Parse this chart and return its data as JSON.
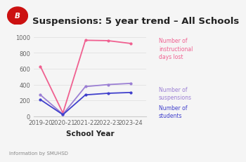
{
  "title": "Suspensions: 5 year trend – All Schools",
  "xlabel": "School Year",
  "footer": "Information by SMUHSD",
  "x_labels": [
    "2019-20",
    "2020-21",
    "2021-22",
    "2022-23",
    "2023-24"
  ],
  "days_lost": [
    630,
    40,
    960,
    955,
    920
  ],
  "suspensions": [
    270,
    25,
    375,
    400,
    415
  ],
  "students": [
    210,
    20,
    270,
    290,
    300
  ],
  "color_days": "#f06090",
  "color_suspensions": "#9b7fd4",
  "color_students": "#4040cc",
  "ylim": [
    0,
    1000
  ],
  "yticks": [
    0,
    200,
    400,
    600,
    800,
    1000
  ],
  "title_fontsize": 9.5,
  "axis_fontsize": 6,
  "label_fontsize": 5.5,
  "footer_fontsize": 5,
  "bg_color": "#f5f5f5"
}
